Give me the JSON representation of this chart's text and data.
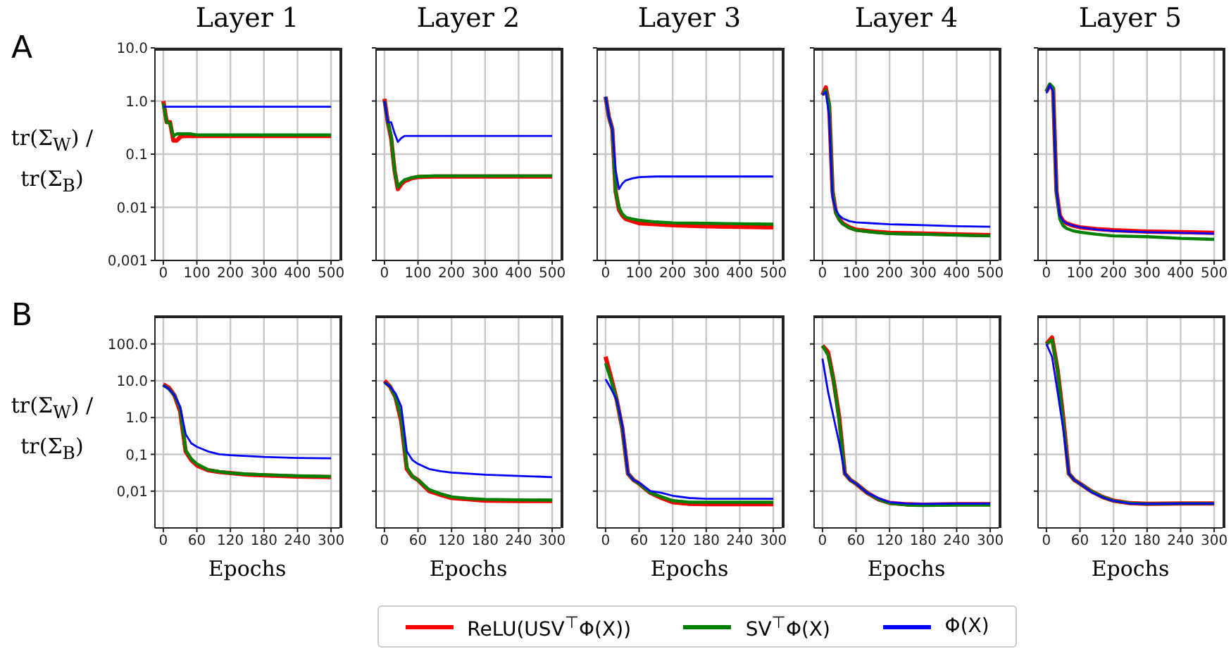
{
  "chart_data": [
    {
      "type": "line",
      "title": "Layer 1",
      "ylabel": "tr(Σ$_{W}$) / tr(Σ$_{B}$)",
      "annotations": [
        "A"
      ],
      "grid": true,
      "log": "y",
      "xlim": [
        -25,
        525
      ],
      "xticks": [
        0,
        100,
        200,
        300,
        400,
        500
      ],
      "ylim": [
        0.001,
        10
      ],
      "yticks": [
        {
          "value": 0.001,
          "label": "0,001"
        },
        {
          "value": 0.01,
          "label": "0.01"
        },
        {
          "value": 0.1,
          "label": "0.1"
        },
        {
          "value": 1,
          "label": "1.0"
        },
        {
          "value": 10,
          "label": "10.0"
        }
      ],
      "x": [
        0,
        10,
        20,
        30,
        40,
        50,
        60,
        80,
        100,
        150,
        200,
        300,
        400,
        500
      ],
      "series": [
        {
          "color": "#ff0000",
          "values": [
            1.0,
            0.4,
            0.4,
            0.18,
            0.18,
            0.21,
            0.22,
            0.22,
            0.22,
            0.22,
            0.22,
            0.22,
            0.22,
            0.22
          ]
        },
        {
          "color": "#008000",
          "values": [
            0.9,
            0.4,
            0.38,
            0.22,
            0.24,
            0.24,
            0.24,
            0.24,
            0.23,
            0.23,
            0.23,
            0.23,
            0.23,
            0.23
          ]
        },
        {
          "color": "#0000ff",
          "values": [
            0.78,
            0.78,
            0.78,
            0.78,
            0.78,
            0.78,
            0.78,
            0.78,
            0.78,
            0.78,
            0.78,
            0.78,
            0.78,
            0.78
          ]
        }
      ]
    },
    {
      "type": "line",
      "title": "Layer 2",
      "grid": true,
      "log": "y",
      "tick_labels": "x",
      "xlim": [
        -25,
        525
      ],
      "xticks": [
        0,
        100,
        200,
        300,
        400,
        500
      ],
      "ylim": [
        0.001,
        10
      ],
      "yticks": [
        0.001,
        0.01,
        0.1,
        1,
        10
      ],
      "x": [
        0,
        10,
        20,
        30,
        40,
        50,
        60,
        80,
        100,
        150,
        200,
        300,
        400,
        500
      ],
      "series": [
        {
          "color": "#ff0000",
          "values": [
            1.1,
            0.4,
            0.2,
            0.05,
            0.022,
            0.027,
            0.031,
            0.035,
            0.037,
            0.038,
            0.038,
            0.038,
            0.038,
            0.038
          ]
        },
        {
          "color": "#008000",
          "values": [
            1.0,
            0.4,
            0.22,
            0.05,
            0.024,
            0.029,
            0.033,
            0.036,
            0.038,
            0.039,
            0.039,
            0.039,
            0.039,
            0.039
          ]
        },
        {
          "color": "#0000ff",
          "values": [
            1.0,
            0.4,
            0.4,
            0.25,
            0.17,
            0.2,
            0.22,
            0.22,
            0.22,
            0.22,
            0.22,
            0.22,
            0.22,
            0.22
          ]
        }
      ]
    },
    {
      "type": "line",
      "title": "Layer 3",
      "grid": true,
      "log": "y",
      "tick_labels": "x",
      "xlim": [
        -25,
        525
      ],
      "xticks": [
        0,
        100,
        200,
        300,
        400,
        500
      ],
      "ylim": [
        0.001,
        10
      ],
      "yticks": [
        0.001,
        0.01,
        0.1,
        1,
        10
      ],
      "x": [
        0,
        10,
        20,
        30,
        40,
        50,
        60,
        80,
        100,
        150,
        200,
        300,
        400,
        500
      ],
      "series": [
        {
          "color": "#ff0000",
          "values": [
            1.2,
            0.5,
            0.3,
            0.02,
            0.009,
            0.007,
            0.006,
            0.0055,
            0.005,
            0.0048,
            0.0046,
            0.0044,
            0.0043,
            0.0042
          ]
        },
        {
          "color": "#008000",
          "values": [
            1.2,
            0.5,
            0.3,
            0.02,
            0.01,
            0.0075,
            0.0065,
            0.006,
            0.0057,
            0.0053,
            0.0051,
            0.005,
            0.0049,
            0.0048
          ]
        },
        {
          "color": "#0000ff",
          "values": [
            1.2,
            0.5,
            0.3,
            0.05,
            0.022,
            0.028,
            0.032,
            0.035,
            0.037,
            0.038,
            0.038,
            0.038,
            0.038,
            0.038
          ]
        }
      ]
    },
    {
      "type": "line",
      "title": "Layer 4",
      "grid": true,
      "log": "y",
      "tick_labels": "x",
      "xlim": [
        -25,
        525
      ],
      "xticks": [
        0,
        100,
        200,
        300,
        400,
        500
      ],
      "ylim": [
        0.001,
        10
      ],
      "yticks": [
        0.001,
        0.01,
        0.1,
        1,
        10
      ],
      "x": [
        0,
        10,
        20,
        30,
        40,
        50,
        60,
        80,
        100,
        150,
        200,
        300,
        400,
        500
      ],
      "series": [
        {
          "color": "#ff0000",
          "values": [
            1.3,
            1.8,
            0.8,
            0.02,
            0.008,
            0.006,
            0.005,
            0.0042,
            0.0038,
            0.0035,
            0.0033,
            0.0032,
            0.0031,
            0.003
          ]
        },
        {
          "color": "#008000",
          "values": [
            1.3,
            1.6,
            0.9,
            0.02,
            0.0078,
            0.0058,
            0.0049,
            0.0041,
            0.0037,
            0.0034,
            0.0032,
            0.0031,
            0.003,
            0.0029
          ]
        },
        {
          "color": "#0000ff",
          "values": [
            1.3,
            1.5,
            0.5,
            0.015,
            0.009,
            0.007,
            0.0062,
            0.0055,
            0.0052,
            0.005,
            0.0048,
            0.0046,
            0.0044,
            0.0043
          ]
        }
      ]
    },
    {
      "type": "line",
      "title": "Layer 5",
      "grid": true,
      "log": "y",
      "tick_labels": "x",
      "xlim": [
        -25,
        525
      ],
      "xticks": [
        0,
        100,
        200,
        300,
        400,
        500
      ],
      "ylim": [
        0.001,
        10
      ],
      "yticks": [
        0.001,
        0.01,
        0.1,
        1,
        10
      ],
      "x": [
        0,
        10,
        20,
        30,
        40,
        50,
        60,
        80,
        100,
        150,
        200,
        300,
        400,
        500
      ],
      "series": [
        {
          "color": "#ff0000",
          "values": [
            1.5,
            2.0,
            1.7,
            0.02,
            0.007,
            0.0055,
            0.005,
            0.0045,
            0.0042,
            0.0039,
            0.0037,
            0.0035,
            0.0034,
            0.0033
          ]
        },
        {
          "color": "#008000",
          "values": [
            1.5,
            2.1,
            1.8,
            0.02,
            0.006,
            0.0045,
            0.004,
            0.0036,
            0.0034,
            0.0031,
            0.0029,
            0.0028,
            0.0026,
            0.0025
          ]
        },
        {
          "color": "#0000ff",
          "values": [
            1.4,
            2.0,
            1.5,
            0.02,
            0.007,
            0.0055,
            0.005,
            0.0045,
            0.0042,
            0.0038,
            0.0036,
            0.0034,
            0.0033,
            0.0032
          ]
        }
      ]
    },
    {
      "type": "line",
      "xlabel": "Epochs",
      "ylabel": "tr(Σ$_{W}$) / tr(Σ$_{B}$)",
      "annotations": [
        "B"
      ],
      "grid": true,
      "log": "y",
      "xlim": [
        -15,
        315
      ],
      "xticks": [
        0,
        60,
        120,
        180,
        240,
        300
      ],
      "ylim": [
        0.001,
        600
      ],
      "yticks": [
        {
          "value": 0.01,
          "label": "0,01"
        },
        {
          "value": 0.1,
          "label": "0,1"
        },
        {
          "value": 1,
          "label": "1.0"
        },
        {
          "value": 10,
          "label": "10.0"
        },
        {
          "value": 100,
          "label": "100.0"
        }
      ],
      "x": [
        0,
        10,
        20,
        30,
        40,
        50,
        60,
        80,
        100,
        120,
        150,
        180,
        240,
        300
      ],
      "series": [
        {
          "color": "#ff0000",
          "values": [
            8,
            6.5,
            4,
            1.5,
            0.12,
            0.07,
            0.05,
            0.037,
            0.033,
            0.031,
            0.028,
            0.027,
            0.025,
            0.024
          ]
        },
        {
          "color": "#008000",
          "values": [
            7.5,
            6,
            4,
            1.8,
            0.13,
            0.075,
            0.055,
            0.038,
            0.034,
            0.031,
            0.029,
            0.028,
            0.026,
            0.025
          ]
        },
        {
          "color": "#0000ff",
          "values": [
            7.5,
            6,
            4,
            2,
            0.35,
            0.2,
            0.16,
            0.12,
            0.1,
            0.095,
            0.09,
            0.085,
            0.08,
            0.078
          ]
        }
      ]
    },
    {
      "type": "line",
      "xlabel": "Epochs",
      "grid": true,
      "log": "y",
      "tick_labels": "x",
      "xlim": [
        -15,
        315
      ],
      "xticks": [
        0,
        60,
        120,
        180,
        240,
        300
      ],
      "ylim": [
        0.001,
        600
      ],
      "yticks": [
        0.01,
        0.1,
        1,
        10,
        100
      ],
      "x": [
        0,
        10,
        20,
        30,
        40,
        50,
        60,
        80,
        100,
        120,
        150,
        180,
        240,
        300
      ],
      "series": [
        {
          "color": "#ff0000",
          "values": [
            10,
            7,
            3.5,
            0.8,
            0.04,
            0.025,
            0.02,
            0.01,
            0.008,
            0.0065,
            0.006,
            0.0055,
            0.0054,
            0.0054
          ]
        },
        {
          "color": "#008000",
          "values": [
            9,
            7,
            3.5,
            1.0,
            0.045,
            0.025,
            0.02,
            0.011,
            0.0085,
            0.007,
            0.0063,
            0.006,
            0.0058,
            0.0057
          ]
        },
        {
          "color": "#0000ff",
          "values": [
            9,
            7,
            4.5,
            2,
            0.12,
            0.07,
            0.055,
            0.04,
            0.035,
            0.032,
            0.03,
            0.028,
            0.026,
            0.024
          ]
        }
      ]
    },
    {
      "type": "line",
      "xlabel": "Epochs",
      "grid": true,
      "log": "y",
      "tick_labels": "x",
      "legend": "bottom",
      "xlim": [
        -15,
        315
      ],
      "xticks": [
        0,
        60,
        120,
        180,
        240,
        300
      ],
      "ylim": [
        0.001,
        600
      ],
      "yticks": [
        0.01,
        0.1,
        1,
        10,
        100
      ],
      "x": [
        0,
        10,
        20,
        30,
        40,
        50,
        60,
        80,
        100,
        120,
        150,
        180,
        240,
        300
      ],
      "series": [
        {
          "name": "ReLU(USV$^{⊤}$Φ(X))",
          "color": "#ff0000",
          "values": [
            45,
            12,
            3,
            0.5,
            0.03,
            0.02,
            0.016,
            0.009,
            0.0065,
            0.005,
            0.0045,
            0.0044,
            0.0044,
            0.0044
          ]
        },
        {
          "name": "SV$^{⊤}$Φ(X)",
          "color": "#008000",
          "values": [
            30,
            10,
            3,
            0.5,
            0.03,
            0.02,
            0.016,
            0.009,
            0.007,
            0.0055,
            0.005,
            0.005,
            0.005,
            0.005
          ]
        },
        {
          "name": "Φ(X)",
          "color": "#0000ff",
          "values": [
            11,
            6,
            3,
            0.6,
            0.03,
            0.02,
            0.017,
            0.01,
            0.009,
            0.0075,
            0.0065,
            0.0062,
            0.0062,
            0.0062
          ]
        }
      ]
    },
    {
      "type": "line",
      "xlabel": "Epochs",
      "grid": true,
      "log": "y",
      "tick_labels": "x",
      "xlim": [
        -15,
        315
      ],
      "xticks": [
        0,
        60,
        120,
        180,
        240,
        300
      ],
      "ylim": [
        0.001,
        600
      ],
      "yticks": [
        0.01,
        0.1,
        1,
        10,
        100
      ],
      "x": [
        0,
        10,
        20,
        30,
        40,
        50,
        60,
        80,
        100,
        120,
        150,
        180,
        240,
        300
      ],
      "series": [
        {
          "color": "#ff0000",
          "values": [
            90,
            60,
            10,
            1,
            0.03,
            0.02,
            0.016,
            0.009,
            0.006,
            0.0048,
            0.0044,
            0.0043,
            0.0044,
            0.0044
          ]
        },
        {
          "color": "#008000",
          "values": [
            90,
            50,
            10,
            0.8,
            0.03,
            0.02,
            0.016,
            0.009,
            0.006,
            0.0047,
            0.0042,
            0.0041,
            0.0042,
            0.0042
          ]
        },
        {
          "color": "#0000ff",
          "values": [
            40,
            5,
            1,
            0.2,
            0.03,
            0.02,
            0.016,
            0.009,
            0.0065,
            0.005,
            0.0046,
            0.0045,
            0.0046,
            0.0046
          ]
        }
      ]
    },
    {
      "type": "line",
      "xlabel": "Epochs",
      "grid": true,
      "log": "y",
      "tick_labels": "x",
      "xlim": [
        -15,
        315
      ],
      "xticks": [
        0,
        60,
        120,
        180,
        240,
        300
      ],
      "ylim": [
        0.001,
        600
      ],
      "yticks": [
        0.01,
        0.1,
        1,
        10,
        100
      ],
      "x": [
        0,
        10,
        20,
        30,
        40,
        50,
        60,
        80,
        100,
        120,
        150,
        180,
        240,
        300
      ],
      "series": [
        {
          "color": "#ff0000",
          "values": [
            100,
            150,
            20,
            1,
            0.03,
            0.02,
            0.016,
            0.01,
            0.007,
            0.0055,
            0.0047,
            0.0045,
            0.0046,
            0.0046
          ]
        },
        {
          "color": "#008000",
          "values": [
            100,
            130,
            20,
            0.8,
            0.03,
            0.02,
            0.016,
            0.01,
            0.007,
            0.0055,
            0.0047,
            0.0045,
            0.0046,
            0.0046
          ]
        },
        {
          "color": "#0000ff",
          "values": [
            100,
            45,
            5,
            0.5,
            0.03,
            0.02,
            0.016,
            0.0095,
            0.0068,
            0.0054,
            0.0046,
            0.0045,
            0.0046,
            0.0046
          ]
        }
      ]
    }
  ]
}
